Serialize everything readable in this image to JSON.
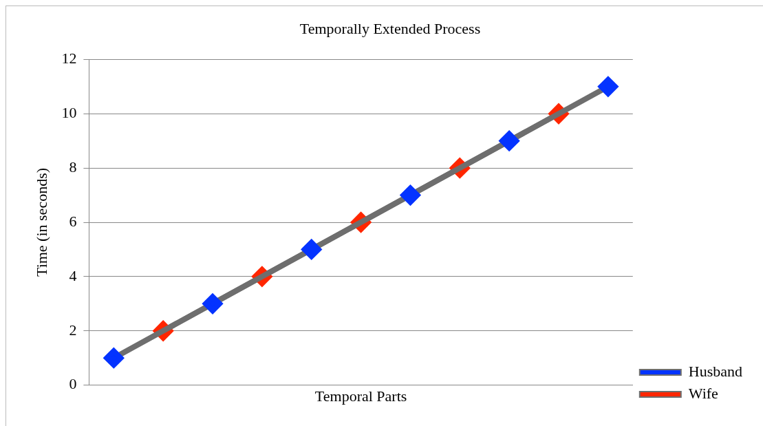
{
  "chart_data": {
    "type": "line",
    "title": "Temporally Extended Process",
    "xlabel": "Temporal Parts",
    "ylabel": "Time (in seconds)",
    "categories": [
      null,
      null,
      null,
      null,
      null,
      null,
      null,
      null,
      null,
      null,
      null
    ],
    "series": [
      {
        "name": "Husband",
        "color": "#0433ff",
        "values": [
          1,
          null,
          3,
          null,
          5,
          null,
          7,
          null,
          9,
          null,
          11
        ]
      },
      {
        "name": "Wife",
        "color": "#ff2600",
        "values": [
          null,
          2,
          null,
          4,
          null,
          6,
          null,
          8,
          null,
          10,
          null
        ]
      }
    ],
    "ylim": [
      0,
      12
    ],
    "yticks": [
      0,
      2,
      4,
      6,
      8,
      10,
      12
    ],
    "grid": "y",
    "legend": "right",
    "marker": "diamond",
    "line_style": "solid"
  }
}
